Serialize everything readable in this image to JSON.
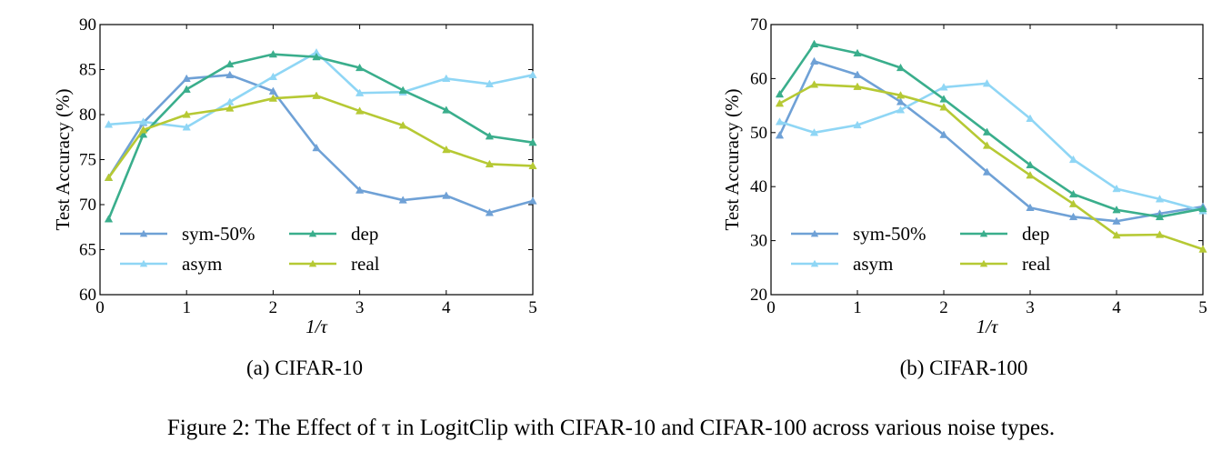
{
  "figure_caption": "Figure 2: The Effect of τ in LogitClip with CIFAR-10 and CIFAR-100 across various noise types.",
  "colors": {
    "sym-50%": "#6fa1d6",
    "asym": "#8fd6f5",
    "dep": "#3aae8c",
    "real": "#b6c934"
  },
  "chart_data": [
    {
      "type": "line",
      "subcaption": "(a) CIFAR-10",
      "xlabel": "1/τ",
      "ylabel": "Test Accuracy (%)",
      "xlim": [
        0,
        5
      ],
      "ylim": [
        60,
        90
      ],
      "xticks": [
        0,
        1,
        2,
        3,
        4,
        5
      ],
      "yticks": [
        60,
        65,
        70,
        75,
        80,
        85,
        90
      ],
      "legend_position": "lower-left",
      "x": [
        0.1,
        0.5,
        1,
        1.5,
        2,
        2.5,
        3,
        3.5,
        4,
        4.5,
        5
      ],
      "series": [
        {
          "name": "sym-50%",
          "values": [
            73.0,
            79.1,
            84.0,
            84.4,
            82.6,
            76.3,
            71.6,
            70.5,
            71.0,
            69.1,
            70.4
          ]
        },
        {
          "name": "asym",
          "values": [
            78.9,
            79.2,
            78.6,
            81.4,
            84.2,
            86.9,
            82.4,
            82.5,
            84.0,
            83.4,
            84.4
          ]
        },
        {
          "name": "dep",
          "values": [
            68.4,
            77.8,
            82.8,
            85.6,
            86.7,
            86.4,
            85.2,
            82.7,
            80.5,
            77.6,
            76.9
          ]
        },
        {
          "name": "real",
          "values": [
            73.0,
            78.3,
            80.0,
            80.7,
            81.8,
            82.1,
            80.4,
            78.8,
            76.1,
            74.5,
            74.3
          ]
        }
      ]
    },
    {
      "type": "line",
      "subcaption": "(b) CIFAR-100",
      "xlabel": "1/τ",
      "ylabel": "Test Accuracy (%)",
      "xlim": [
        0,
        5
      ],
      "ylim": [
        20,
        70
      ],
      "xticks": [
        0,
        1,
        2,
        3,
        4,
        5
      ],
      "yticks": [
        20,
        30,
        40,
        50,
        60,
        70
      ],
      "legend_position": "lower-left",
      "x": [
        0.1,
        0.5,
        1,
        1.5,
        2,
        2.5,
        3,
        3.5,
        4,
        4.5,
        5
      ],
      "series": [
        {
          "name": "sym-50%",
          "values": [
            49.5,
            63.2,
            60.7,
            55.7,
            49.6,
            42.7,
            36.1,
            34.4,
            33.6,
            35.0,
            36.3
          ]
        },
        {
          "name": "asym",
          "values": [
            52.0,
            50.0,
            51.4,
            54.2,
            58.4,
            59.1,
            52.6,
            45.0,
            39.6,
            37.7,
            35.5
          ]
        },
        {
          "name": "dep",
          "values": [
            57.1,
            66.4,
            64.7,
            62.0,
            56.2,
            50.1,
            44.0,
            38.6,
            35.7,
            34.4,
            35.9
          ]
        },
        {
          "name": "real",
          "values": [
            55.4,
            58.9,
            58.5,
            56.9,
            54.7,
            47.6,
            42.1,
            36.8,
            31.0,
            31.1,
            28.4
          ]
        }
      ]
    }
  ]
}
